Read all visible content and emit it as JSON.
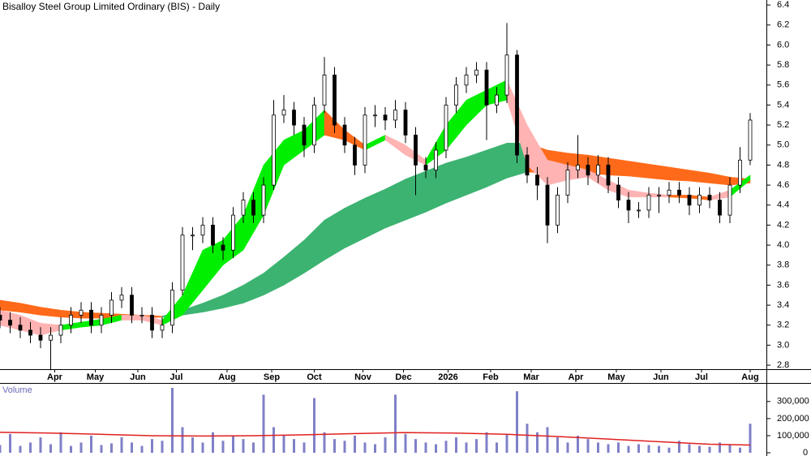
{
  "chart_data": [
    {
      "type": "candlestick",
      "title": "Bisalloy Steel Group Limited Ordinary (BIS) - Daily",
      "x": [
        0,
        5,
        10,
        15,
        20,
        25,
        30,
        35,
        40,
        45,
        50,
        55,
        60,
        65,
        70,
        75,
        80,
        85,
        90,
        95,
        100,
        105,
        110,
        115,
        120,
        125,
        130,
        135,
        140,
        145,
        150,
        155,
        160,
        165,
        170,
        175,
        180,
        185,
        190,
        195,
        200,
        205,
        210,
        215,
        220,
        225,
        230,
        235,
        240,
        245,
        250,
        255,
        260,
        265,
        270,
        275,
        280,
        285,
        290,
        295,
        300,
        305,
        310,
        315,
        320,
        325,
        330,
        335,
        340,
        345,
        350,
        355,
        360,
        365,
        370
      ],
      "open": [
        3.3,
        3.25,
        3.2,
        3.15,
        3.1,
        3.05,
        3.1,
        3.2,
        3.3,
        3.35,
        3.2,
        3.3,
        3.45,
        3.5,
        3.3,
        3.3,
        3.15,
        3.2,
        3.55,
        4.1,
        4.1,
        4.2,
        4.0,
        3.95,
        4.3,
        4.45,
        4.3,
        4.6,
        5.3,
        5.35,
        5.2,
        5.0,
        5.4,
        5.7,
        5.2,
        5.0,
        4.8,
        5.3,
        5.3,
        5.25,
        5.35,
        5.1,
        4.8,
        4.75,
        4.95,
        5.4,
        5.6,
        5.7,
        5.75,
        5.4,
        5.5,
        5.9,
        4.9,
        4.7,
        4.6,
        4.2,
        4.5,
        4.75,
        4.8,
        4.7,
        4.8,
        4.6,
        4.45,
        4.35,
        4.35,
        4.5,
        4.5,
        4.55,
        4.5,
        4.4,
        4.5,
        4.45,
        4.3,
        4.6,
        4.85
      ],
      "high": [
        3.38,
        3.33,
        3.28,
        3.23,
        3.18,
        3.18,
        3.28,
        3.38,
        3.43,
        3.43,
        3.38,
        3.53,
        3.58,
        3.58,
        3.38,
        3.38,
        3.28,
        3.63,
        4.18,
        4.18,
        4.28,
        4.28,
        4.08,
        4.38,
        4.53,
        4.53,
        4.68,
        5.45,
        5.5,
        5.43,
        5.28,
        5.48,
        5.88,
        5.78,
        5.28,
        5.08,
        5.38,
        5.4,
        5.38,
        5.45,
        5.43,
        5.18,
        4.88,
        5.03,
        5.48,
        5.68,
        5.78,
        5.83,
        5.83,
        5.58,
        6.22,
        5.95,
        4.98,
        4.78,
        4.68,
        4.58,
        4.83,
        5.1,
        4.88,
        4.9,
        4.88,
        4.68,
        4.53,
        4.43,
        4.58,
        4.58,
        4.63,
        4.63,
        4.58,
        4.58,
        4.58,
        4.53,
        4.68,
        4.98,
        5.32
      ],
      "low": [
        3.17,
        3.12,
        3.07,
        3.02,
        2.97,
        2.75,
        3.02,
        3.12,
        3.22,
        3.12,
        3.12,
        3.22,
        3.37,
        3.22,
        3.22,
        3.07,
        3.07,
        3.12,
        3.5,
        3.95,
        4.02,
        3.92,
        3.85,
        3.87,
        4.22,
        4.22,
        4.22,
        4.55,
        5.22,
        5.1,
        4.88,
        4.92,
        5.32,
        5.12,
        4.92,
        4.7,
        4.72,
        5.18,
        5.15,
        5.17,
        5.02,
        4.5,
        4.67,
        4.67,
        4.87,
        5.32,
        5.52,
        5.62,
        5.05,
        5.32,
        5.42,
        4.82,
        4.62,
        4.45,
        4.02,
        4.12,
        4.42,
        4.67,
        4.6,
        4.62,
        4.52,
        4.37,
        4.22,
        4.27,
        4.27,
        4.32,
        4.42,
        4.42,
        4.3,
        4.32,
        4.37,
        4.22,
        4.22,
        4.52,
        4.8
      ],
      "close": [
        3.25,
        3.2,
        3.15,
        3.1,
        3.05,
        3.1,
        3.2,
        3.3,
        3.35,
        3.2,
        3.3,
        3.45,
        3.5,
        3.3,
        3.3,
        3.15,
        3.2,
        3.55,
        4.1,
        4.1,
        4.2,
        4.0,
        3.95,
        4.3,
        4.45,
        4.3,
        4.6,
        5.3,
        5.35,
        5.2,
        5.0,
        5.4,
        5.7,
        5.2,
        5.0,
        4.8,
        5.3,
        5.3,
        5.25,
        5.35,
        5.1,
        4.8,
        4.75,
        4.95,
        5.4,
        5.6,
        5.7,
        5.75,
        5.4,
        5.5,
        5.9,
        4.9,
        4.7,
        4.6,
        4.2,
        4.5,
        4.75,
        4.8,
        4.7,
        4.8,
        4.6,
        4.45,
        4.35,
        4.35,
        4.5,
        4.5,
        4.55,
        4.5,
        4.4,
        4.5,
        4.45,
        4.3,
        4.6,
        4.85,
        5.25
      ],
      "bands": [
        {
          "x": [
            0,
            10,
            20,
            30,
            40,
            50,
            60,
            70,
            80,
            90,
            100,
            110,
            120,
            130,
            140,
            150,
            160,
            170,
            180,
            190,
            200,
            210,
            220,
            230,
            240,
            250,
            260,
            270,
            280,
            290,
            300,
            310,
            320,
            330,
            340,
            350,
            360,
            370
          ],
          "upper": [
            3.45,
            3.42,
            3.38,
            3.35,
            3.33,
            3.32,
            3.31,
            3.3,
            3.29,
            3.35,
            3.42,
            3.5,
            3.6,
            3.72,
            3.88,
            4.05,
            4.25,
            4.37,
            4.47,
            4.56,
            4.66,
            4.74,
            4.82,
            4.88,
            4.95,
            5.02,
            5.02,
            4.95,
            4.92,
            4.9,
            4.87,
            4.84,
            4.81,
            4.78,
            4.75,
            4.72,
            4.68,
            4.66
          ],
          "lower": [
            3.35,
            3.33,
            3.3,
            3.28,
            3.27,
            3.27,
            3.27,
            3.27,
            3.28,
            3.3,
            3.33,
            3.37,
            3.42,
            3.5,
            3.6,
            3.72,
            3.85,
            3.97,
            4.07,
            4.17,
            4.25,
            4.33,
            4.42,
            4.5,
            4.58,
            4.67,
            4.73,
            4.72,
            4.72,
            4.72,
            4.7,
            4.69,
            4.67,
            4.65,
            4.64,
            4.62,
            4.6,
            4.62
          ],
          "colors": [
            "#ff6a1a",
            "#ff6a1a",
            "#ff6a1a",
            "#ff6a1a",
            "#ff6a1a",
            "#ff6a1a",
            "#ff6a1a",
            "#ff6a1a",
            "#3cb371",
            "#3cb371",
            "#3cb371",
            "#3cb371",
            "#3cb371",
            "#3cb371",
            "#3cb371",
            "#3cb371",
            "#3cb371",
            "#3cb371",
            "#3cb371",
            "#3cb371",
            "#3cb371",
            "#3cb371",
            "#3cb371",
            "#3cb371",
            "#3cb371",
            "#3cb371",
            "#ff6a1a",
            "#ff6a1a",
            "#ff6a1a",
            "#ff6a1a",
            "#ff6a1a",
            "#ff6a1a",
            "#ff6a1a",
            "#ff6a1a",
            "#ff6a1a",
            "#ff6a1a",
            "#ff6a1a",
            "#ff6a1a"
          ]
        },
        {
          "x": [
            0,
            10,
            20,
            30,
            40,
            50,
            60,
            70,
            80,
            90,
            100,
            110,
            120,
            130,
            140,
            150,
            160,
            170,
            180,
            190,
            200,
            210,
            220,
            230,
            240,
            250,
            260,
            270,
            280,
            290,
            300,
            310,
            320,
            330,
            340,
            350,
            360,
            370
          ],
          "upper": [
            3.35,
            3.3,
            3.22,
            3.2,
            3.23,
            3.26,
            3.3,
            3.3,
            3.25,
            3.5,
            3.95,
            4.05,
            4.3,
            4.8,
            5.05,
            5.15,
            5.35,
            5.15,
            5.0,
            5.1,
            5.0,
            4.85,
            5.2,
            5.45,
            5.55,
            5.65,
            5.2,
            4.85,
            4.8,
            4.75,
            4.65,
            4.55,
            4.52,
            4.5,
            4.5,
            4.48,
            4.55,
            4.7
          ],
          "lower": [
            3.2,
            3.15,
            3.1,
            3.15,
            3.18,
            3.2,
            3.25,
            3.25,
            3.2,
            3.3,
            3.55,
            3.8,
            3.95,
            4.3,
            4.8,
            4.95,
            5.1,
            5.05,
            4.95,
            5.05,
            4.9,
            4.8,
            4.95,
            5.2,
            5.4,
            5.45,
            4.8,
            4.6,
            4.65,
            4.68,
            4.55,
            4.48,
            4.48,
            4.48,
            4.47,
            4.45,
            4.48,
            4.65
          ],
          "colors": [
            "#ffb3b3",
            "#ffb3b3",
            "#ffb3b3",
            "#00ee00",
            "#00ee00",
            "#00ee00",
            "#ffb3b3",
            "#ffb3b3",
            "#00ee00",
            "#00ee00",
            "#00ee00",
            "#00ee00",
            "#00ee00",
            "#00ee00",
            "#00ee00",
            "#00ee00",
            "#ff6a1a",
            "#ff6a1a",
            "#00ee00",
            "#ffb3b3",
            "#ffb3b3",
            "#00ee00",
            "#00ee00",
            "#00ee00",
            "#00ee00",
            "#ffb3b3",
            "#ffb3b3",
            "#ffb3b3",
            "#ffb3b3",
            "#ffb3b3",
            "#ffb3b3",
            "#ffb3b3",
            "#ffb3b3",
            "#ff6a1a",
            "#ff6a1a",
            "#ffb3b3",
            "#00ee00",
            "#00ee00"
          ]
        }
      ],
      "xlim": [
        0,
        378
      ],
      "xticks": [
        {
          "value": 27,
          "label": "Apr"
        },
        {
          "value": 47,
          "label": "May"
        },
        {
          "value": 68,
          "label": "Jun"
        },
        {
          "value": 87,
          "label": "Jul"
        },
        {
          "value": 112,
          "label": "Aug"
        },
        {
          "value": 134,
          "label": "Sep"
        },
        {
          "value": 155,
          "label": "Oct"
        },
        {
          "value": 179,
          "label": "Nov"
        },
        {
          "value": 199,
          "label": "Dec"
        },
        {
          "value": 221,
          "label": "2026"
        },
        {
          "value": 242,
          "label": "Feb"
        },
        {
          "value": 262,
          "label": "Mar"
        },
        {
          "value": 284,
          "label": "Apr"
        },
        {
          "value": 304,
          "label": "May"
        },
        {
          "value": 326,
          "label": "Jun"
        },
        {
          "value": 346,
          "label": "Jul"
        },
        {
          "value": 370,
          "label": "Aug"
        }
      ],
      "ylim": [
        2.76,
        6.45
      ],
      "yticks": [
        2.8,
        {
          "value": 3,
          "label": "3.0"
        },
        3.2,
        3.4,
        3.6,
        3.8,
        {
          "value": 4,
          "label": "4.0"
        },
        4.2,
        4.4,
        4.6,
        4.8,
        {
          "value": 5,
          "label": "5.0"
        },
        5.2,
        5.4,
        5.6,
        5.8,
        {
          "value": 6,
          "label": "6.0"
        },
        6.2,
        6.4
      ]
    },
    {
      "type": "bar",
      "title": "Volume",
      "color": "#8080c8",
      "x": [
        0,
        5,
        10,
        15,
        20,
        25,
        30,
        35,
        40,
        45,
        50,
        55,
        60,
        65,
        70,
        75,
        80,
        85,
        90,
        95,
        100,
        105,
        110,
        115,
        120,
        125,
        130,
        135,
        140,
        145,
        150,
        155,
        160,
        165,
        170,
        175,
        180,
        185,
        190,
        195,
        200,
        205,
        210,
        215,
        220,
        225,
        230,
        235,
        240,
        245,
        250,
        255,
        260,
        265,
        270,
        275,
        280,
        285,
        290,
        295,
        300,
        305,
        310,
        315,
        320,
        325,
        330,
        335,
        340,
        345,
        350,
        355,
        360,
        365,
        370
      ],
      "values": [
        45000,
        110000,
        40000,
        60000,
        90000,
        50000,
        120000,
        40000,
        60000,
        100000,
        45000,
        55000,
        90000,
        60000,
        40000,
        80000,
        70000,
        380000,
        150000,
        90000,
        60000,
        120000,
        70000,
        100000,
        80000,
        60000,
        340000,
        150000,
        100000,
        80000,
        60000,
        320000,
        120000,
        80000,
        70000,
        100000,
        60000,
        50000,
        90000,
        340000,
        110000,
        80000,
        60000,
        50000,
        70000,
        90000,
        60000,
        80000,
        120000,
        60000,
        110000,
        360000,
        170000,
        120000,
        150000,
        90000,
        60000,
        100000,
        80000,
        60000,
        50000,
        60000,
        40000,
        50000,
        45000,
        40000,
        30000,
        70000,
        50000,
        40000,
        35000,
        60000,
        50000,
        30000,
        170000
      ],
      "average": {
        "color": "#e02020",
        "x": [
          0,
          25,
          50,
          75,
          100,
          125,
          150,
          175,
          200,
          225,
          250,
          275,
          300,
          325,
          350,
          370
        ],
        "values": [
          120000,
          115000,
          108000,
          100000,
          98000,
          100000,
          105000,
          112000,
          118000,
          115000,
          108000,
          95000,
          80000,
          65000,
          50000,
          45000
        ]
      },
      "xlim": [
        0,
        378
      ],
      "ylim": [
        0,
        380000
      ],
      "yticks": [
        0,
        {
          "value": 100000,
          "label": "100,000"
        },
        {
          "value": 200000,
          "label": "200,000"
        },
        {
          "value": 300000,
          "label": "300,000"
        }
      ]
    }
  ]
}
